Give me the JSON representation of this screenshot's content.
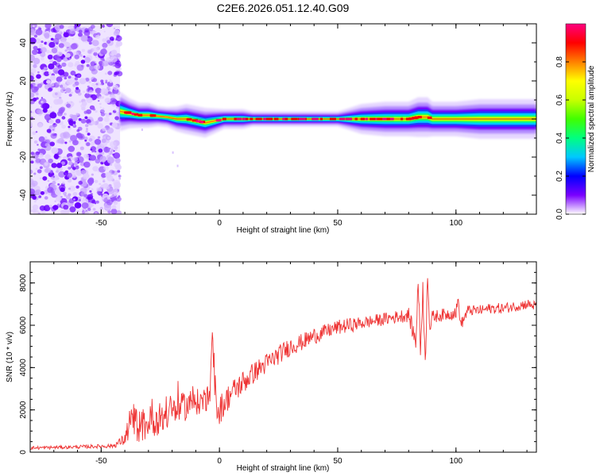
{
  "title": "C2E6.2026.051.12.40.G09",
  "chart_data": [
    {
      "type": "heatmap",
      "xlabel": "Height of straight line (km)",
      "ylabel": "Frequency (Hz)",
      "xlim": [
        -80,
        134
      ],
      "ylim": [
        -50,
        50
      ],
      "xticks": [
        -50,
        0,
        50,
        100
      ],
      "yticks": [
        -40,
        -20,
        0,
        20,
        40
      ],
      "colorbar": {
        "label": "Normalized spectral amplitude",
        "range": [
          0,
          1
        ],
        "ticks": [
          0.0,
          0.2,
          0.4,
          0.6,
          0.8
        ],
        "tick_labels": [
          "0.0",
          "0.2",
          "0.4",
          "0.6",
          "0.8"
        ],
        "colors": [
          "#ffffff",
          "#7a00ff",
          "#0000ff",
          "#00c8ff",
          "#00ff80",
          "#40ff00",
          "#c8ff00",
          "#ffff00",
          "#ff8000",
          "#ff0000",
          "#ff0080"
        ]
      },
      "noise_region_x": [
        -80,
        -42
      ],
      "ridge": {
        "x": [
          -42,
          -38,
          -34,
          -30,
          -26,
          -22,
          -18,
          -14,
          -10,
          -6,
          -2,
          2,
          6,
          10,
          14,
          18,
          22,
          30,
          40,
          50,
          60,
          70,
          80,
          84,
          88,
          90,
          100,
          110,
          120,
          134
        ],
        "frequency": [
          4,
          3,
          2,
          2,
          1.5,
          1,
          0,
          0,
          -1,
          -2,
          -1,
          0,
          0,
          0,
          0,
          0,
          0,
          0,
          0,
          0,
          0,
          0,
          0,
          1,
          1,
          0,
          0,
          0,
          0,
          0
        ],
        "width": [
          4,
          3,
          2.5,
          2.5,
          2,
          2,
          2.5,
          3,
          3,
          3,
          2.5,
          2,
          2,
          2,
          1.5,
          1.5,
          1.5,
          1.5,
          1.5,
          1.5,
          3,
          3.5,
          3.5,
          4,
          4,
          3.5,
          3.5,
          4,
          4,
          4
        ]
      }
    },
    {
      "type": "line",
      "xlabel": "Height of straight line (km)",
      "ylabel": "SNR (10 * v/v)",
      "xlim": [
        -80,
        134
      ],
      "ylim": [
        0,
        9000
      ],
      "xticks": [
        -50,
        0,
        50,
        100
      ],
      "yticks": [
        0,
        2000,
        4000,
        6000,
        8000
      ],
      "color": "#ee3333",
      "series": [
        {
          "x": [
            -80,
            -60,
            -45,
            -40,
            -38,
            -36,
            -34,
            -30,
            -26,
            -22,
            -20,
            -16,
            -12,
            -8,
            -4,
            -3,
            -2,
            0,
            5,
            10,
            15,
            20,
            25,
            30,
            35,
            40,
            45,
            50,
            55,
            60,
            65,
            70,
            75,
            80,
            83,
            84,
            85,
            86,
            87,
            88,
            89,
            90,
            95,
            100,
            101,
            102,
            105,
            110,
            115,
            120,
            125,
            130,
            134
          ],
          "y": [
            200,
            250,
            300,
            600,
            1300,
            1500,
            1200,
            1400,
            1600,
            1700,
            1900,
            2100,
            2300,
            2400,
            2600,
            5800,
            2500,
            2000,
            2800,
            3300,
            3800,
            4200,
            4600,
            5000,
            5200,
            5500,
            5700,
            5900,
            6000,
            6100,
            6200,
            6300,
            6400,
            6500,
            5200,
            8100,
            4800,
            7800,
            4000,
            8600,
            5800,
            6400,
            6500,
            6600,
            7200,
            6000,
            6700,
            6700,
            6800,
            6800,
            6900,
            7000,
            6900
          ],
          "noise_amplitude": [
            80,
            80,
            100,
            300,
            700,
            800,
            800,
            800,
            800,
            700,
            700,
            700,
            700,
            600,
            600,
            200,
            700,
            700,
            600,
            600,
            500,
            500,
            450,
            450,
            400,
            400,
            350,
            350,
            350,
            300,
            300,
            300,
            300,
            350,
            500,
            500,
            500,
            500,
            500,
            500,
            500,
            300,
            300,
            300,
            300,
            300,
            250,
            250,
            250,
            250,
            250,
            250,
            250
          ]
        }
      ]
    }
  ]
}
